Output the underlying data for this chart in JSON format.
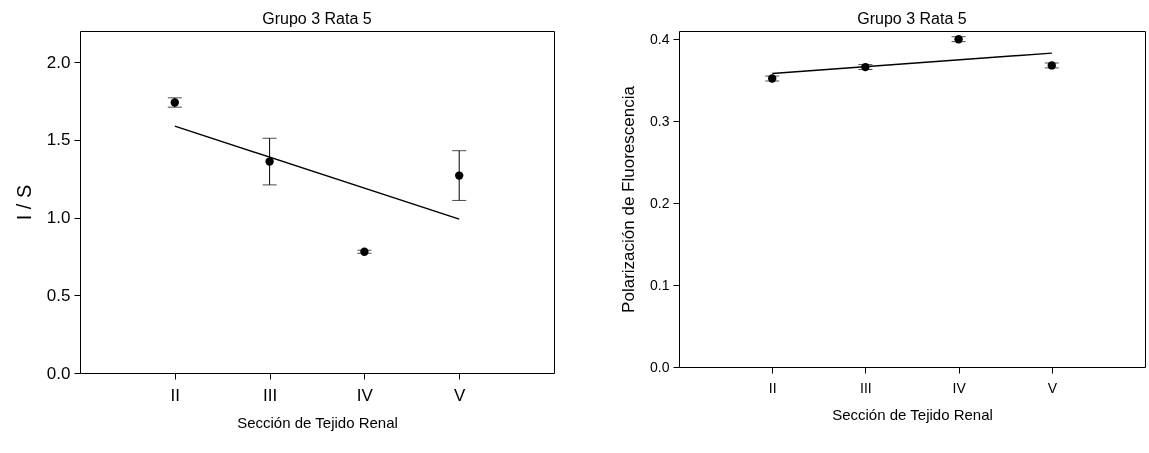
{
  "chart_data": [
    {
      "type": "scatter",
      "title": "Grupo 3 Rata 5",
      "xlabel": "Sección de Tejido Renal",
      "ylabel": "I / S",
      "categories": [
        "II",
        "III",
        "IV",
        "V"
      ],
      "series": [
        {
          "color": "#000000",
          "values": [
            1.74,
            1.36,
            0.78,
            1.27
          ],
          "errors": [
            0.03,
            0.15,
            0.01,
            0.16
          ],
          "marker": "circle"
        },
        {
          "type": "line",
          "color": "#000000",
          "x": [
            "II",
            "V"
          ],
          "values": [
            1.588,
            0.99
          ]
        }
      ],
      "ylim": [
        0,
        2.2
      ],
      "yticks": [
        {
          "value": 0,
          "label": "0.0"
        },
        0.5,
        {
          "value": 1,
          "label": "1.0"
        },
        1.5,
        {
          "value": 2,
          "label": "2.0"
        }
      ],
      "grid": false
    },
    {
      "type": "scatter",
      "title": "Grupo 3 Rata 5",
      "xlabel": "Sección de Tejido Renal",
      "ylabel": "Polarización de Fluorescencia",
      "categories": [
        "II",
        "III",
        "IV",
        "V"
      ],
      "series": [
        {
          "color": "#000000",
          "values": [
            0.352,
            0.366,
            0.4,
            0.368
          ],
          "errors": [
            0.003,
            0.003,
            0.003,
            0.003
          ],
          "marker": "circle"
        },
        {
          "type": "line",
          "color": "#000000",
          "x": [
            "II",
            "V"
          ],
          "values": [
            0.358,
            0.383
          ]
        }
      ],
      "ylim": [
        0,
        0.41
      ],
      "yticks": [
        {
          "value": 0,
          "label": "0.0"
        },
        0.1,
        0.2,
        0.3,
        0.4
      ],
      "grid": false
    }
  ]
}
